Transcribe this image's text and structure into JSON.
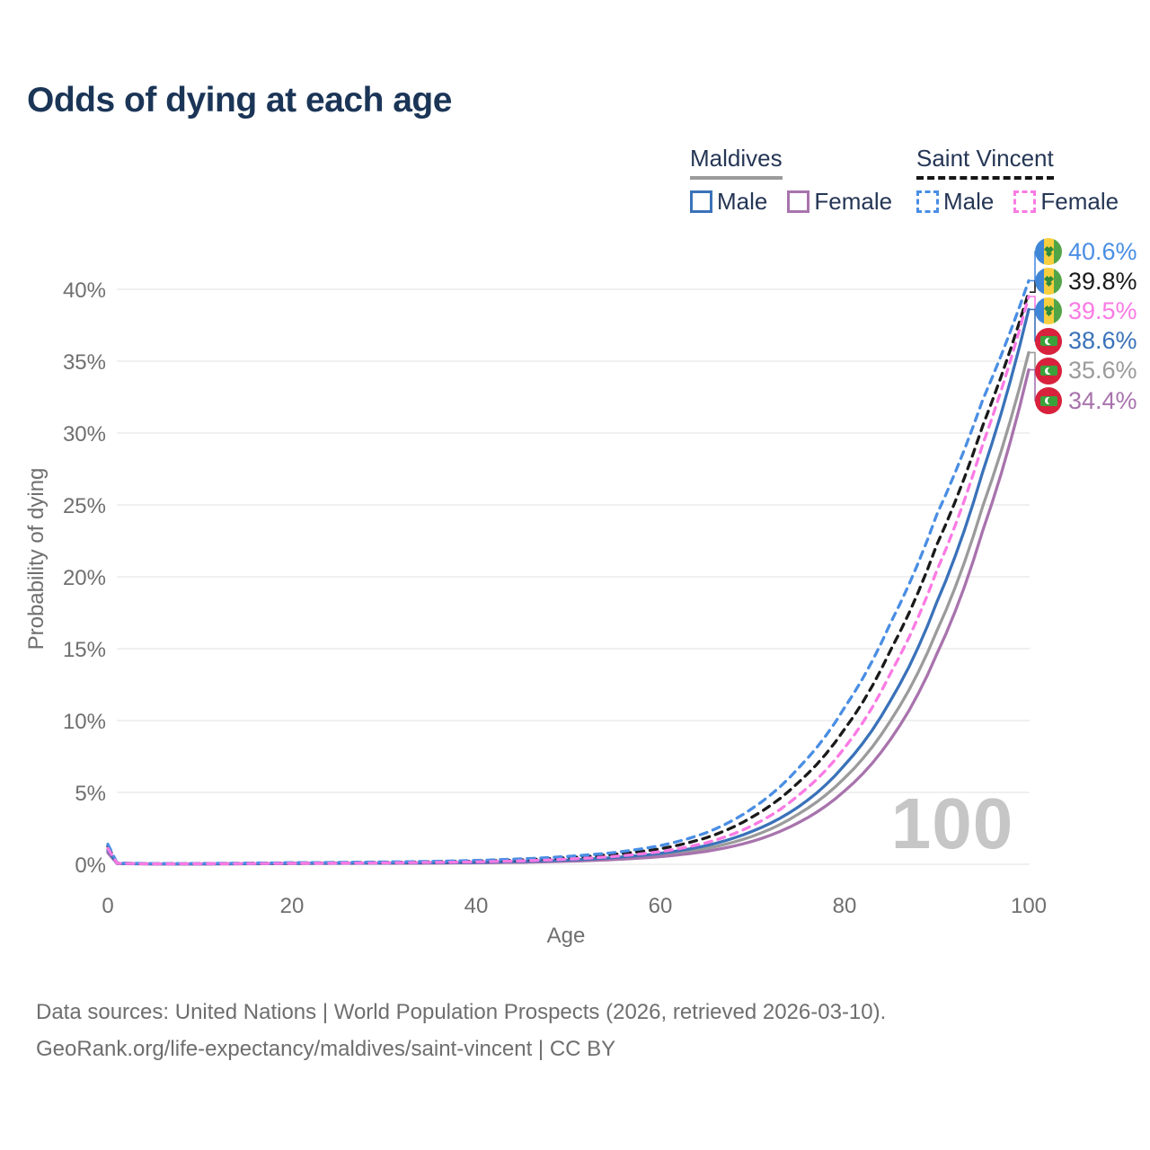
{
  "title": "Odds of dying at each age",
  "legend": {
    "groups": [
      {
        "title": "Maldives",
        "line_style": "solid",
        "underline_color": "#9b9b9b",
        "items": [
          {
            "label": "Male",
            "color": "#3a72b9",
            "dashed": false
          },
          {
            "label": "Female",
            "color": "#a873ad",
            "dashed": false
          }
        ]
      },
      {
        "title": "Saint Vincent",
        "line_style": "dashed",
        "underline_color": "#161616",
        "items": [
          {
            "label": "Male",
            "color": "#4a8ee4",
            "dashed": true
          },
          {
            "label": "Female",
            "color": "#fa7ae4",
            "dashed": true
          }
        ]
      }
    ]
  },
  "chart_data": {
    "type": "line",
    "title": "Odds of dying at each age",
    "xlabel": "Age",
    "ylabel": "Probability of dying",
    "xlim": [
      0,
      100
    ],
    "ylim": [
      0,
      43
    ],
    "xticks": [
      0,
      20,
      40,
      60,
      80,
      100
    ],
    "yticks": [
      0,
      5,
      10,
      15,
      20,
      25,
      30,
      35,
      40
    ],
    "ytick_suffix": "%",
    "grid": true,
    "hover_age_label": "100",
    "series": [
      {
        "id": "maldives-total",
        "name": "Maldives Both sexes",
        "country": "Maldives",
        "sex": "both",
        "color": "#9b9b9b",
        "dashed": false,
        "flag": "maldives",
        "end_label": "35.6%",
        "end_value": 35.6,
        "points": [
          [
            0,
            0.9
          ],
          [
            1,
            0.05
          ],
          [
            5,
            0.025
          ],
          [
            10,
            0.025
          ],
          [
            15,
            0.04
          ],
          [
            20,
            0.06
          ],
          [
            25,
            0.07
          ],
          [
            30,
            0.08
          ],
          [
            35,
            0.1
          ],
          [
            40,
            0.12
          ],
          [
            45,
            0.17
          ],
          [
            50,
            0.26
          ],
          [
            55,
            0.4
          ],
          [
            60,
            0.64
          ],
          [
            65,
            1.1
          ],
          [
            70,
            1.95
          ],
          [
            75,
            3.5
          ],
          [
            80,
            6.0
          ],
          [
            85,
            10.0
          ],
          [
            90,
            16.2
          ],
          [
            95,
            24.9
          ],
          [
            100,
            35.6
          ]
        ]
      },
      {
        "id": "maldives-female",
        "name": "Maldives Female",
        "country": "Maldives",
        "sex": "female",
        "color": "#a873ad",
        "dashed": false,
        "flag": "maldives",
        "end_label": "34.4%",
        "end_value": 34.4,
        "points": [
          [
            0,
            0.8
          ],
          [
            1,
            0.05
          ],
          [
            5,
            0.02
          ],
          [
            10,
            0.02
          ],
          [
            15,
            0.03
          ],
          [
            20,
            0.05
          ],
          [
            25,
            0.06
          ],
          [
            30,
            0.07
          ],
          [
            35,
            0.08
          ],
          [
            40,
            0.1
          ],
          [
            45,
            0.14
          ],
          [
            50,
            0.21
          ],
          [
            55,
            0.33
          ],
          [
            60,
            0.53
          ],
          [
            65,
            0.9
          ],
          [
            70,
            1.6
          ],
          [
            75,
            2.9
          ],
          [
            80,
            5.1
          ],
          [
            85,
            8.7
          ],
          [
            90,
            14.6
          ],
          [
            95,
            23.2
          ],
          [
            100,
            34.4
          ]
        ]
      },
      {
        "id": "maldives-male",
        "name": "Maldives Male",
        "country": "Maldives",
        "sex": "male",
        "color": "#3a72b9",
        "dashed": false,
        "flag": "maldives",
        "end_label": "38.6%",
        "end_value": 38.6,
        "points": [
          [
            0,
            1.0
          ],
          [
            1,
            0.06
          ],
          [
            5,
            0.03
          ],
          [
            10,
            0.03
          ],
          [
            15,
            0.05
          ],
          [
            20,
            0.07
          ],
          [
            25,
            0.08
          ],
          [
            30,
            0.09
          ],
          [
            35,
            0.11
          ],
          [
            40,
            0.14
          ],
          [
            45,
            0.2
          ],
          [
            50,
            0.3
          ],
          [
            55,
            0.47
          ],
          [
            60,
            0.76
          ],
          [
            65,
            1.3
          ],
          [
            70,
            2.3
          ],
          [
            75,
            4.0
          ],
          [
            80,
            6.9
          ],
          [
            85,
            11.4
          ],
          [
            90,
            18.2
          ],
          [
            95,
            27.3
          ],
          [
            100,
            38.6
          ]
        ]
      },
      {
        "id": "saint-vincent-total",
        "name": "Saint Vincent Both sexes",
        "country": "Saint Vincent",
        "sex": "both",
        "color": "#1a1a1a",
        "dashed": true,
        "flag": "saint-vincent",
        "end_label": "39.8%",
        "end_value": 39.8,
        "points": [
          [
            0,
            1.25
          ],
          [
            1,
            0.08
          ],
          [
            5,
            0.04
          ],
          [
            10,
            0.05
          ],
          [
            15,
            0.07
          ],
          [
            20,
            0.09
          ],
          [
            25,
            0.11
          ],
          [
            30,
            0.13
          ],
          [
            35,
            0.17
          ],
          [
            40,
            0.22
          ],
          [
            45,
            0.31
          ],
          [
            50,
            0.46
          ],
          [
            55,
            0.69
          ],
          [
            60,
            1.08
          ],
          [
            65,
            1.85
          ],
          [
            70,
            3.3
          ],
          [
            75,
            5.7
          ],
          [
            80,
            9.4
          ],
          [
            85,
            14.9
          ],
          [
            90,
            22.2
          ],
          [
            95,
            30.5
          ],
          [
            100,
            39.8
          ]
        ]
      },
      {
        "id": "saint-vincent-male",
        "name": "Saint Vincent Male",
        "country": "Saint Vincent",
        "sex": "male",
        "color": "#4a8ee4",
        "dashed": true,
        "flag": "saint-vincent",
        "end_label": "40.6%",
        "end_value": 40.6,
        "points": [
          [
            0,
            1.4
          ],
          [
            1,
            0.09
          ],
          [
            5,
            0.05
          ],
          [
            10,
            0.06
          ],
          [
            15,
            0.08
          ],
          [
            20,
            0.11
          ],
          [
            25,
            0.13
          ],
          [
            30,
            0.16
          ],
          [
            35,
            0.2
          ],
          [
            40,
            0.27
          ],
          [
            45,
            0.38
          ],
          [
            50,
            0.55
          ],
          [
            55,
            0.82
          ],
          [
            60,
            1.3
          ],
          [
            65,
            2.2
          ],
          [
            70,
            3.9
          ],
          [
            75,
            6.7
          ],
          [
            80,
            10.9
          ],
          [
            85,
            16.8
          ],
          [
            90,
            24.3
          ],
          [
            95,
            32.3
          ],
          [
            100,
            40.6
          ]
        ]
      },
      {
        "id": "saint-vincent-female",
        "name": "Saint Vincent Female",
        "country": "Saint Vincent",
        "sex": "female",
        "color": "#fa7ae4",
        "dashed": true,
        "flag": "saint-vincent",
        "end_label": "39.5%",
        "end_value": 39.5,
        "points": [
          [
            0,
            1.1
          ],
          [
            1,
            0.07
          ],
          [
            5,
            0.03
          ],
          [
            10,
            0.04
          ],
          [
            15,
            0.05
          ],
          [
            20,
            0.07
          ],
          [
            25,
            0.08
          ],
          [
            30,
            0.1
          ],
          [
            35,
            0.13
          ],
          [
            40,
            0.17
          ],
          [
            45,
            0.24
          ],
          [
            50,
            0.36
          ],
          [
            55,
            0.55
          ],
          [
            60,
            0.88
          ],
          [
            65,
            1.5
          ],
          [
            70,
            2.7
          ],
          [
            75,
            4.8
          ],
          [
            80,
            8.1
          ],
          [
            85,
            13.3
          ],
          [
            90,
            20.4
          ],
          [
            95,
            29.2
          ],
          [
            100,
            39.5
          ]
        ]
      }
    ]
  },
  "footer": {
    "line1": "Data sources: United Nations | World Population Prospects (2026, retrieved 2026-03-10).",
    "line2": "GeoRank.org/life-expectancy/maldives/saint-vincent | CC BY"
  }
}
